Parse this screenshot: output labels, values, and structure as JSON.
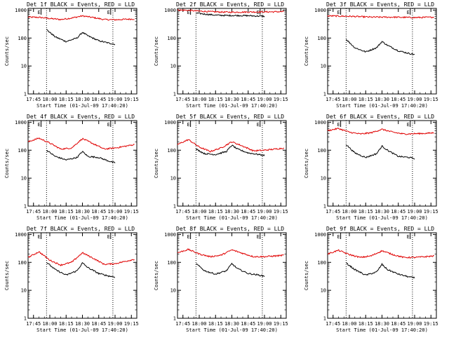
{
  "colors": {
    "events": "#000000",
    "lld": "#e00000",
    "axes": "#000000",
    "background": "#ffffff"
  },
  "chart_data": [
    {
      "type": "line",
      "title": "Det 1f BLACK = Events, RED = LLD",
      "xlabel": "Start Time (01-Jul-09 17:40:20)",
      "ylabel": "Counts/sec",
      "x_ticks": [
        "17:45",
        "18:00",
        "18:15",
        "18:30",
        "18:45",
        "19:00",
        "19:15"
      ],
      "y_ticks": [
        "1",
        "10",
        "100",
        "1000"
      ],
      "ylog": true,
      "ylim": [
        1,
        1000
      ],
      "markers": [
        {
          "x": "17:52",
          "label": "E"
        },
        {
          "x": "18:56",
          "label": "E"
        }
      ],
      "vlines": [
        "17:57",
        "18:58"
      ],
      "series": [
        {
          "name": "LLD",
          "color": "#e00000",
          "x": [
            "17:40",
            "17:50",
            "18:00",
            "18:10",
            "18:20",
            "18:30",
            "18:40",
            "18:50",
            "19:00",
            "19:10",
            "19:18"
          ],
          "y": [
            560,
            550,
            500,
            460,
            520,
            620,
            540,
            460,
            450,
            470,
            480
          ]
        },
        {
          "name": "Events",
          "color": "#000000",
          "x": [
            "17:57",
            "18:05",
            "18:15",
            "18:25",
            "18:30",
            "18:35",
            "18:45",
            "18:55",
            "19:00"
          ],
          "y": [
            200,
            110,
            75,
            100,
            160,
            120,
            80,
            65,
            60
          ]
        }
      ]
    },
    {
      "type": "line",
      "title": "Det 2f BLACK = Events, RED = LLD",
      "xlabel": "Start Time (01-Jul-09 17:40:20)",
      "ylabel": "Counts/sec",
      "x_ticks": [
        "17:45",
        "18:00",
        "18:15",
        "18:30",
        "18:45",
        "19:00",
        "19:15"
      ],
      "y_ticks": [
        "1",
        "10",
        "100",
        "1000"
      ],
      "ylog": true,
      "ylim": [
        1,
        1000
      ],
      "markers": [
        {
          "x": "17:52",
          "label": "E"
        },
        {
          "x": "18:56",
          "label": "E"
        }
      ],
      "vlines": [
        "17:57",
        "18:58"
      ],
      "series": [
        {
          "name": "LLD",
          "color": "#e00000",
          "x": [
            "17:40",
            "17:50",
            "18:00",
            "18:10",
            "18:20",
            "18:30",
            "18:40",
            "18:50",
            "19:00",
            "19:10",
            "19:18"
          ],
          "y": [
            1000,
            980,
            920,
            880,
            850,
            840,
            850,
            860,
            860,
            870,
            880
          ]
        },
        {
          "name": "Events",
          "color": "#000000",
          "x": [
            "17:57",
            "18:05",
            "18:15",
            "18:25",
            "18:30",
            "18:35",
            "18:45",
            "18:55",
            "19:00"
          ],
          "y": [
            780,
            720,
            660,
            640,
            640,
            640,
            630,
            610,
            600
          ]
        }
      ]
    },
    {
      "type": "line",
      "title": "Det 3f BLACK = Events, RED = LLD",
      "xlabel": "Start Time (01-Jul-09 17:40:20)",
      "ylabel": "Counts/sec",
      "x_ticks": [
        "17:45",
        "18:00",
        "18:15",
        "18:30",
        "18:45",
        "19:00",
        "19:15"
      ],
      "y_ticks": [
        "1",
        "10",
        "100",
        "1000"
      ],
      "ylog": true,
      "ylim": [
        1,
        1000
      ],
      "markers": [
        {
          "x": "17:52",
          "label": "E"
        },
        {
          "x": "18:56",
          "label": "E"
        }
      ],
      "vlines": [
        "17:57",
        "18:58"
      ],
      "series": [
        {
          "name": "LLD",
          "color": "#e00000",
          "x": [
            "17:40",
            "17:50",
            "18:00",
            "18:10",
            "18:20",
            "18:30",
            "18:40",
            "18:50",
            "19:00",
            "19:10",
            "19:18"
          ],
          "y": [
            620,
            610,
            600,
            580,
            560,
            560,
            560,
            550,
            540,
            550,
            560
          ]
        },
        {
          "name": "Events",
          "color": "#000000",
          "x": [
            "17:57",
            "18:05",
            "18:15",
            "18:25",
            "18:30",
            "18:35",
            "18:45",
            "18:55",
            "19:00"
          ],
          "y": [
            90,
            45,
            32,
            45,
            75,
            55,
            35,
            28,
            26
          ]
        }
      ]
    },
    {
      "type": "line",
      "title": "Det 4f BLACK = Events, RED = LLD",
      "xlabel": "Start Time (01-Jul-09 17:40:20)",
      "ylabel": "Counts/sec",
      "x_ticks": [
        "17:45",
        "18:00",
        "18:15",
        "18:30",
        "18:45",
        "19:00",
        "19:15"
      ],
      "y_ticks": [
        "1",
        "10",
        "100",
        "1000"
      ],
      "ylog": true,
      "ylim": [
        1,
        1000
      ],
      "markers": [
        {
          "x": "17:52",
          "label": "E"
        },
        {
          "x": "18:56",
          "label": "E"
        }
      ],
      "vlines": [
        "17:57",
        "18:58"
      ],
      "series": [
        {
          "name": "LLD",
          "color": "#e00000",
          "x": [
            "17:40",
            "17:50",
            "18:00",
            "18:10",
            "18:20",
            "18:30",
            "18:40",
            "18:50",
            "19:00",
            "19:10",
            "19:18"
          ],
          "y": [
            200,
            270,
            180,
            110,
            120,
            260,
            170,
            110,
            120,
            140,
            160
          ]
        },
        {
          "name": "Events",
          "color": "#000000",
          "x": [
            "17:57",
            "18:05",
            "18:15",
            "18:25",
            "18:30",
            "18:35",
            "18:45",
            "18:55",
            "19:00"
          ],
          "y": [
            100,
            60,
            45,
            55,
            90,
            60,
            55,
            40,
            35
          ]
        }
      ]
    },
    {
      "type": "line",
      "title": "Det 5f BLACK = Events, RED = LLD",
      "xlabel": "Start Time (01-Jul-09 17:40:20)",
      "ylabel": "Counts/sec",
      "x_ticks": [
        "17:45",
        "18:00",
        "18:15",
        "18:30",
        "18:45",
        "19:00",
        "19:15"
      ],
      "y_ticks": [
        "1",
        "10",
        "100",
        "1000"
      ],
      "ylog": true,
      "ylim": [
        1,
        1000
      ],
      "markers": [
        {
          "x": "17:52",
          "label": "E"
        },
        {
          "x": "18:56",
          "label": "E"
        }
      ],
      "vlines": [
        "17:57",
        "18:58"
      ],
      "series": [
        {
          "name": "LLD",
          "color": "#e00000",
          "x": [
            "17:40",
            "17:50",
            "18:00",
            "18:10",
            "18:20",
            "18:30",
            "18:40",
            "18:50",
            "19:00",
            "19:10",
            "19:18"
          ],
          "y": [
            160,
            240,
            130,
            90,
            120,
            200,
            140,
            95,
            100,
            110,
            120
          ]
        },
        {
          "name": "Events",
          "color": "#000000",
          "x": [
            "17:57",
            "18:05",
            "18:15",
            "18:25",
            "18:30",
            "18:35",
            "18:45",
            "18:55",
            "19:00"
          ],
          "y": [
            110,
            75,
            70,
            90,
            150,
            110,
            80,
            70,
            65
          ]
        }
      ]
    },
    {
      "type": "line",
      "title": "Det 6f BLACK = Events, RED = LLD",
      "xlabel": "Start Time (01-Jul-09 17:40:20)",
      "ylabel": "Counts/sec",
      "x_ticks": [
        "17:45",
        "18:00",
        "18:15",
        "18:30",
        "18:45",
        "19:00",
        "19:15"
      ],
      "y_ticks": [
        "1",
        "10",
        "100",
        "1000"
      ],
      "ylog": true,
      "ylim": [
        1,
        1000
      ],
      "markers": [
        {
          "x": "17:52",
          "label": "E"
        },
        {
          "x": "18:56",
          "label": "E"
        }
      ],
      "vlines": [
        "17:57",
        "18:58"
      ],
      "series": [
        {
          "name": "LLD",
          "color": "#e00000",
          "x": [
            "17:40",
            "17:50",
            "18:00",
            "18:10",
            "18:20",
            "18:30",
            "18:40",
            "18:50",
            "19:00",
            "19:10",
            "19:18"
          ],
          "y": [
            500,
            600,
            440,
            380,
            420,
            560,
            440,
            380,
            390,
            400,
            420
          ]
        },
        {
          "name": "Events",
          "color": "#000000",
          "x": [
            "17:57",
            "18:05",
            "18:15",
            "18:25",
            "18:30",
            "18:35",
            "18:45",
            "18:55",
            "19:00"
          ],
          "y": [
            160,
            80,
            55,
            75,
            140,
            100,
            60,
            55,
            50
          ]
        }
      ]
    },
    {
      "type": "line",
      "title": "Det 7f BLACK = Events, RED = LLD",
      "xlabel": "Start Time (01-Jul-09 17:40:20)",
      "ylabel": "Counts/sec",
      "x_ticks": [
        "17:45",
        "18:00",
        "18:15",
        "18:30",
        "18:45",
        "19:00",
        "19:15"
      ],
      "y_ticks": [
        "1",
        "10",
        "100",
        "1000"
      ],
      "ylog": true,
      "ylim": [
        1,
        1000
      ],
      "markers": [
        {
          "x": "17:52",
          "label": "E"
        },
        {
          "x": "18:56",
          "label": "E"
        }
      ],
      "vlines": [
        "17:57",
        "18:58"
      ],
      "series": [
        {
          "name": "LLD",
          "color": "#e00000",
          "x": [
            "17:40",
            "17:50",
            "18:00",
            "18:10",
            "18:20",
            "18:30",
            "18:40",
            "18:50",
            "19:00",
            "19:10",
            "19:18"
          ],
          "y": [
            150,
            240,
            120,
            80,
            100,
            220,
            140,
            85,
            90,
            110,
            130
          ]
        },
        {
          "name": "Events",
          "color": "#000000",
          "x": [
            "17:57",
            "18:05",
            "18:15",
            "18:25",
            "18:30",
            "18:35",
            "18:45",
            "18:55",
            "19:00"
          ],
          "y": [
            100,
            55,
            35,
            50,
            95,
            65,
            40,
            32,
            30
          ]
        }
      ]
    },
    {
      "type": "line",
      "title": "Det 8f BLACK = Events, RED = LLD",
      "xlabel": "Start Time (01-Jul-09 17:40:20)",
      "ylabel": "Counts/sec",
      "x_ticks": [
        "17:45",
        "18:00",
        "18:15",
        "18:30",
        "18:45",
        "19:00",
        "19:15"
      ],
      "y_ticks": [
        "1",
        "10",
        "100",
        "1000"
      ],
      "ylog": true,
      "ylim": [
        1,
        1000
      ],
      "markers": [
        {
          "x": "17:52",
          "label": "E"
        },
        {
          "x": "18:56",
          "label": "E"
        }
      ],
      "vlines": [
        "17:57",
        "18:58"
      ],
      "series": [
        {
          "name": "LLD",
          "color": "#e00000",
          "x": [
            "17:40",
            "17:50",
            "18:00",
            "18:10",
            "18:20",
            "18:30",
            "18:40",
            "18:50",
            "19:00",
            "19:10",
            "19:18"
          ],
          "y": [
            220,
            290,
            200,
            160,
            180,
            280,
            210,
            160,
            160,
            170,
            180
          ]
        },
        {
          "name": "Events",
          "color": "#000000",
          "x": [
            "17:57",
            "18:05",
            "18:15",
            "18:25",
            "18:30",
            "18:35",
            "18:45",
            "18:55",
            "19:00"
          ],
          "y": [
            90,
            50,
            38,
            50,
            90,
            60,
            40,
            35,
            32
          ]
        }
      ]
    },
    {
      "type": "line",
      "title": "Det 9f BLACK = Events, RED = LLD",
      "xlabel": "Start Time (01-Jul-09 17:40:20)",
      "ylabel": "Counts/sec",
      "x_ticks": [
        "17:45",
        "18:00",
        "18:15",
        "18:30",
        "18:45",
        "19:00",
        "19:15"
      ],
      "y_ticks": [
        "1",
        "10",
        "100",
        "1000"
      ],
      "ylog": true,
      "ylim": [
        1,
        1000
      ],
      "markers": [
        {
          "x": "17:52",
          "label": "E"
        },
        {
          "x": "18:56",
          "label": "E"
        }
      ],
      "vlines": [
        "17:57",
        "18:58"
      ],
      "series": [
        {
          "name": "LLD",
          "color": "#e00000",
          "x": [
            "17:40",
            "17:50",
            "18:00",
            "18:10",
            "18:20",
            "18:30",
            "18:40",
            "18:50",
            "19:00",
            "19:10",
            "19:18"
          ],
          "y": [
            200,
            270,
            190,
            150,
            170,
            260,
            190,
            150,
            150,
            160,
            170
          ]
        },
        {
          "name": "Events",
          "color": "#000000",
          "x": [
            "17:57",
            "18:05",
            "18:15",
            "18:25",
            "18:30",
            "18:35",
            "18:45",
            "18:55",
            "19:00"
          ],
          "y": [
            95,
            55,
            35,
            45,
            85,
            55,
            38,
            30,
            28
          ]
        }
      ]
    }
  ]
}
